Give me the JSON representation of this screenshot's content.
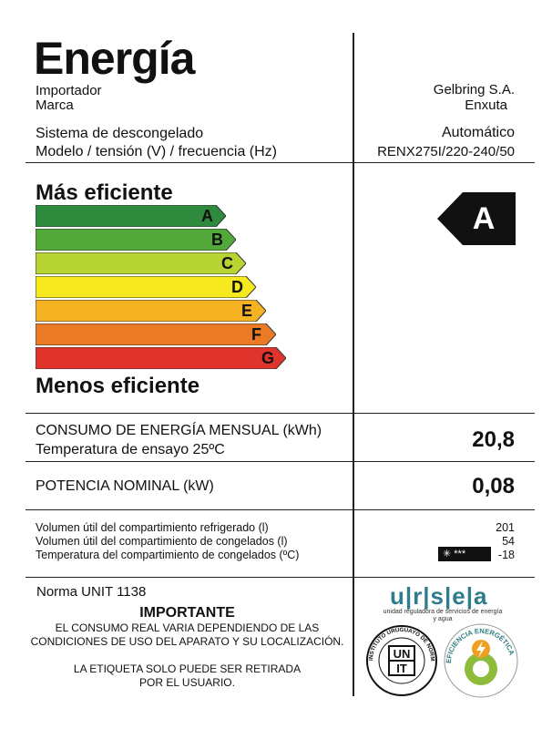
{
  "header": {
    "title": "Energía",
    "importer_label": "Importador",
    "brand_label": "Marca",
    "importer_value": "Gelbring S.A.",
    "brand_value": "Enxuta",
    "defrost_label": "Sistema de descongelado",
    "model_label": "Modelo / tensión (V) / frecuencia (Hz)",
    "defrost_value": "Automático",
    "model_value": "RENX275I/220-240/50"
  },
  "scale": {
    "top_label": "Más eficiente",
    "bottom_label": "Menos eficiente",
    "classes": [
      {
        "letter": "A",
        "color": "#2e8b3e"
      },
      {
        "letter": "B",
        "color": "#52a93a"
      },
      {
        "letter": "C",
        "color": "#b7d433"
      },
      {
        "letter": "D",
        "color": "#f6ea1f"
      },
      {
        "letter": "E",
        "color": "#f5b324"
      },
      {
        "letter": "F",
        "color": "#ea7a25"
      },
      {
        "letter": "G",
        "color": "#e0332b"
      }
    ],
    "rating": "A",
    "rating_color": "#111111"
  },
  "consumption": {
    "label": "CONSUMO DE ENERGÍA MENSUAL (kWh)",
    "sublabel": "Temperatura de ensayo 25ºC",
    "value": "20,8"
  },
  "power": {
    "label": "POTENCIA NOMINAL (kW)",
    "value": "0,08"
  },
  "volumes": {
    "fridge_label": "Volumen útil del compartimiento refrigerado (l)",
    "freezer_label": "Volumen útil del compartimiento de congelados (l)",
    "temp_label": "Temperatura del compartimiento de congelados (ºC)",
    "fridge_value": "201",
    "freezer_value": "54",
    "temp_value": "-18",
    "freezer_stars": "✳ ***"
  },
  "footer": {
    "norma": "Norma UNIT 1138",
    "important_title": "IMPORTANTE",
    "important_line1": "EL CONSUMO REAL VARIA DEPENDIENDO DE LAS",
    "important_line2": "CONDICIONES DE USO DEL APARATO Y SU LOCALIZACIÓN.",
    "removal_line1": "LA ETIQUETA SOLO PUEDE SER RETIRADA",
    "removal_line2": "POR EL USUARIO.",
    "ursea_logo": "u|r|s|e|a",
    "ursea_sub": "unidad reguladora de servicios de energía y agua",
    "unit_seal_ring": "INSTITUTO URUGUAYO DE NORMAS TÉCNICAS",
    "unit_seal_top": "UN",
    "unit_seal_bottom": "IT",
    "efficiency_seal": "EFICIENCIA ENERGÉTICA"
  }
}
